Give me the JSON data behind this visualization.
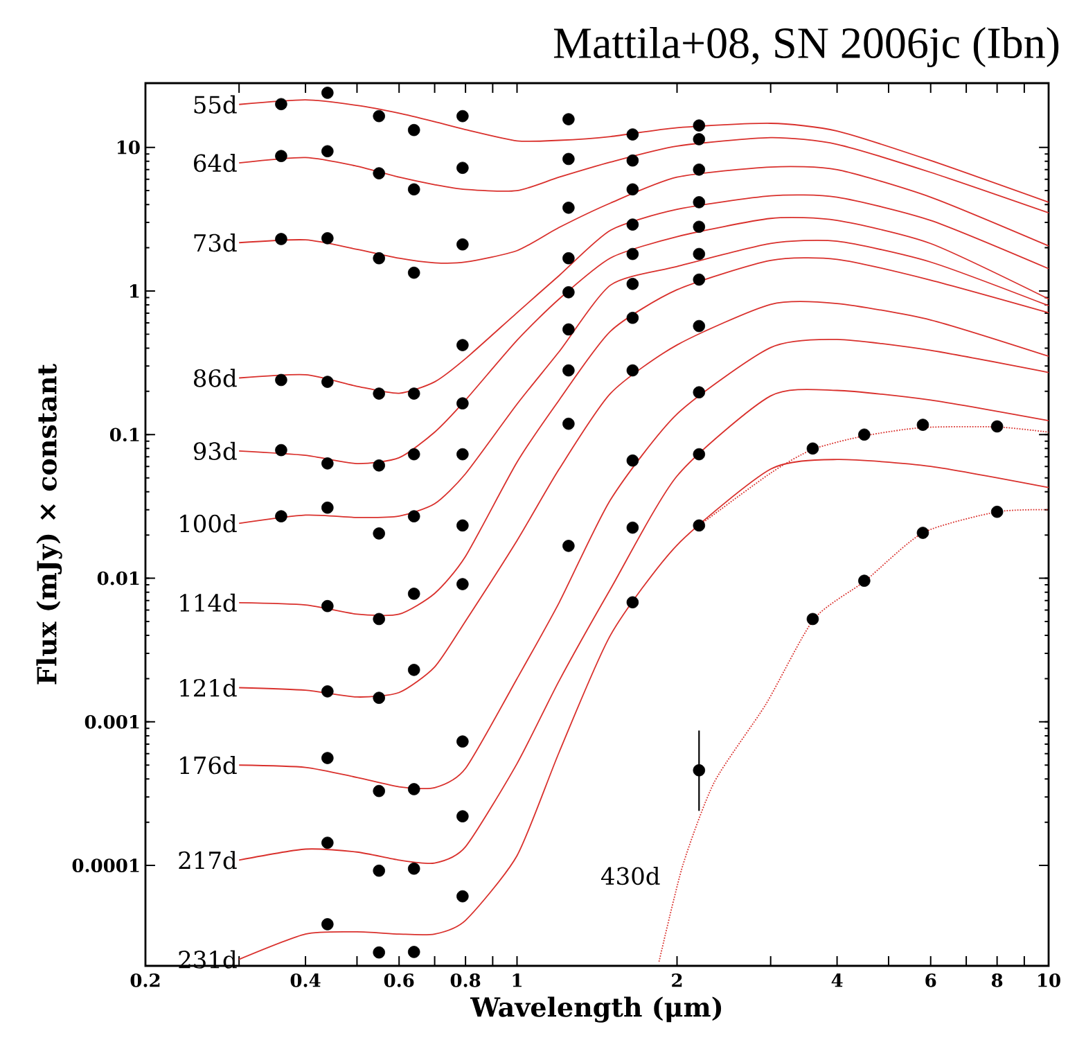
{
  "chart_data": {
    "type": "scatter",
    "title": "Mattila+08, SN 2006jc (Ibn)",
    "xlabel": "Wavelength (μm)",
    "ylabel": "Flux (mJy) × constant",
    "log": "xy",
    "xlim": [
      0.2,
      10
    ],
    "ylim": [
      2e-05,
      28
    ],
    "xticks": [
      0.2,
      {
        "value": 0.3,
        "label": null
      },
      0.4,
      {
        "value": 0.5,
        "label": null
      },
      0.6,
      {
        "value": 0.7,
        "label": null
      },
      0.8,
      {
        "value": 0.9,
        "label": null
      },
      1,
      2,
      {
        "value": 3,
        "label": null
      },
      4,
      {
        "value": 5,
        "label": null
      },
      6,
      {
        "value": 7,
        "label": null
      },
      8,
      {
        "value": 9,
        "label": null
      },
      10
    ],
    "yticks": [
      0.0001,
      0.001,
      0.01,
      0.1,
      1,
      10
    ],
    "x": [
      0.36,
      0.44,
      0.55,
      0.64,
      0.79,
      1.25,
      1.65,
      2.2
    ],
    "series": [
      {
        "type": "line",
        "name": "55d",
        "color": "#d9302c",
        "x": [
          0.3,
          0.4,
          0.5,
          0.6,
          0.7,
          0.8,
          1.0,
          1.2,
          1.5,
          2,
          3,
          4,
          6,
          10
        ],
        "values": [
          19.9,
          21.4,
          19.6,
          17.3,
          15.1,
          13.3,
          11.1,
          11.2,
          11.9,
          13.7,
          14.7,
          13.0,
          8.1,
          4.15
        ]
      },
      {
        "type": "line",
        "name": "64d",
        "color": "#d9302c",
        "x": [
          0.3,
          0.4,
          0.5,
          0.6,
          0.7,
          0.8,
          1.0,
          1.2,
          1.5,
          2,
          3,
          4,
          6,
          10
        ],
        "values": [
          7.8,
          8.5,
          7.4,
          6.2,
          5.5,
          5.1,
          5.0,
          6.2,
          7.9,
          10.2,
          11.7,
          10.5,
          6.7,
          3.5
        ]
      },
      {
        "type": "line",
        "name": "73d",
        "color": "#d9302c",
        "x": [
          0.3,
          0.4,
          0.5,
          0.6,
          0.7,
          0.8,
          1.0,
          1.2,
          1.5,
          2,
          3,
          4,
          6,
          10
        ],
        "values": [
          2.17,
          2.27,
          1.95,
          1.69,
          1.57,
          1.59,
          1.91,
          2.77,
          4.1,
          6.2,
          7.3,
          7.0,
          4.5,
          2.06
        ]
      },
      {
        "type": "line",
        "name": "86d",
        "color": "#d9302c",
        "x": [
          0.3,
          0.4,
          0.5,
          0.6,
          0.7,
          0.8,
          1.0,
          1.2,
          1.5,
          2,
          3,
          4,
          6,
          10
        ],
        "values": [
          0.248,
          0.261,
          0.217,
          0.194,
          0.233,
          0.338,
          0.706,
          1.28,
          2.65,
          3.7,
          4.6,
          4.5,
          3.1,
          1.43
        ]
      },
      {
        "type": "line",
        "name": "93d",
        "color": "#d9302c",
        "x": [
          0.3,
          0.4,
          0.5,
          0.6,
          0.7,
          0.8,
          1.0,
          1.2,
          1.5,
          2,
          3,
          4,
          6,
          10
        ],
        "values": [
          0.077,
          0.0718,
          0.0628,
          0.069,
          0.104,
          0.174,
          0.454,
          0.88,
          1.7,
          2.39,
          3.2,
          3.1,
          2.14,
          0.88
        ]
      },
      {
        "type": "line",
        "name": "100d",
        "color": "#d9302c",
        "x": [
          0.3,
          0.4,
          0.5,
          0.6,
          0.7,
          0.8,
          1.0,
          1.2,
          1.5,
          2,
          3,
          4,
          6,
          10
        ],
        "values": [
          0.0241,
          0.0275,
          0.0265,
          0.0271,
          0.033,
          0.0534,
          0.163,
          0.378,
          1.1,
          1.48,
          2.14,
          2.22,
          1.59,
          0.79
        ]
      },
      {
        "type": "line",
        "name": "114d",
        "color": "#d9302c",
        "x": [
          0.3,
          0.4,
          0.5,
          0.6,
          0.7,
          0.8,
          1.0,
          1.2,
          1.5,
          2,
          3,
          4,
          6,
          10
        ],
        "values": [
          0.00676,
          0.00652,
          0.00562,
          0.00562,
          0.00784,
          0.0142,
          0.0643,
          0.174,
          0.526,
          1.02,
          1.63,
          1.66,
          1.19,
          0.706
        ]
      },
      {
        "type": "line",
        "name": "121d",
        "color": "#d9302c",
        "x": [
          0.3,
          0.4,
          0.5,
          0.6,
          0.7,
          0.8,
          1.0,
          1.2,
          1.5,
          2,
          3,
          4,
          6,
          10
        ],
        "values": [
          0.00173,
          0.00166,
          0.00149,
          0.0016,
          0.00241,
          0.00503,
          0.0183,
          0.0575,
          0.194,
          0.421,
          0.807,
          0.818,
          0.628,
          0.351
        ]
      },
      {
        "type": "line",
        "name": "176d",
        "color": "#d9302c",
        "x": [
          0.3,
          0.4,
          0.5,
          0.6,
          0.7,
          0.8,
          1.0,
          1.2,
          1.5,
          2,
          3,
          4,
          6,
          10
        ],
        "values": [
          0.0005,
          0.000482,
          0.00041,
          0.000353,
          0.000348,
          0.000474,
          0.002,
          0.00676,
          0.0353,
          0.139,
          0.404,
          0.46,
          0.386,
          0.271
        ]
      },
      {
        "type": "line",
        "name": "217d",
        "color": "#d9302c",
        "x": [
          0.3,
          0.4,
          0.5,
          0.6,
          0.7,
          0.8,
          1.0,
          1.2,
          1.5,
          2,
          3,
          4,
          6,
          10
        ],
        "values": [
          0.000109,
          0.00013,
          0.000124,
          0.000109,
          0.000104,
          0.000135,
          0.000512,
          0.00193,
          0.00844,
          0.0515,
          0.186,
          0.203,
          0.174,
          0.125
        ]
      },
      {
        "type": "line",
        "name": "231d",
        "color": "#d9302c",
        "x": [
          0.3,
          0.4,
          0.5,
          0.6,
          0.7,
          0.8,
          1.0,
          1.2,
          1.5,
          2,
          3,
          4,
          6,
          10
        ],
        "values": [
          2.22e-05,
          3.33e-05,
          3.45e-05,
          3.33e-05,
          3.33e-05,
          4.15e-05,
          0.000117,
          0.000614,
          0.00403,
          0.017,
          0.0575,
          0.0671,
          0.0601,
          0.0428
        ]
      },
      {
        "type": "line",
        "color": "#d9302c",
        "line_style": "dotted",
        "x": [
          2.2,
          3,
          3.6,
          4.5,
          5.8,
          8,
          10
        ],
        "values": [
          0.0233,
          0.054,
          0.079,
          0.098,
          0.112,
          0.113,
          0.104
        ]
      },
      {
        "type": "line",
        "color": "#d9302c",
        "line_style": "dotted",
        "x": [
          1.85,
          2.05,
          2.35,
          2.94,
          3.62,
          4.52,
          5.8,
          8,
          10
        ],
        "values": [
          2.14e-05,
          0.0001,
          0.00038,
          0.00133,
          0.0052,
          0.0096,
          0.0207,
          0.029,
          0.03
        ]
      },
      {
        "color": "#000000",
        "values": [
          20,
          24,
          16.5,
          13.2,
          16.5,
          15.7,
          12.3,
          14.2
        ]
      },
      {
        "color": "#000000",
        "values": [
          8.7,
          9.4,
          6.6,
          5.1,
          7.2,
          8.3,
          8.1,
          11.4
        ]
      },
      {
        "color": "#000000",
        "values": [
          2.3,
          2.33,
          1.69,
          1.34,
          2.11,
          3.8,
          5.1,
          7.0
        ]
      },
      {
        "color": "#000000",
        "values": [
          0.24,
          0.233,
          0.193,
          0.193,
          0.42,
          1.69,
          2.9,
          4.15
        ]
      },
      {
        "color": "#000000",
        "values": [
          0.078,
          0.063,
          0.061,
          0.073,
          0.165,
          0.98,
          1.81,
          2.8
        ]
      },
      {
        "color": "#000000",
        "values": [
          0.027,
          0.031,
          0.0205,
          0.027,
          0.073,
          0.54,
          1.12,
          1.81
        ]
      },
      {
        "color": "#000000",
        "values": [
          null,
          0.0064,
          0.0052,
          0.0078,
          0.0233,
          0.28,
          0.65,
          1.2
        ]
      },
      {
        "color": "#000000",
        "values": [
          null,
          0.00163,
          0.00147,
          0.0023,
          0.0091,
          0.119,
          0.28,
          0.57
        ]
      },
      {
        "color": "#000000",
        "values": [
          null,
          0.00056,
          0.00033,
          0.00034,
          0.00073,
          0.0168,
          0.066,
          0.197
        ]
      },
      {
        "color": "#000000",
        "values": [
          null,
          0.000144,
          9.2e-05,
          9.5e-05,
          0.00022,
          null,
          0.0225,
          0.073
        ]
      },
      {
        "color": "#000000",
        "values": [
          null,
          3.9e-05,
          2.48e-05,
          2.5e-05,
          6.1e-05,
          null,
          0.0068,
          0.0233
        ]
      },
      {
        "color": "#000000",
        "x": [
          3.6,
          4.5,
          5.8,
          8.0
        ],
        "values": [
          0.08,
          0.1,
          0.117,
          0.114
        ]
      },
      {
        "color": "#000000",
        "x": [
          3.6,
          4.5,
          5.8,
          8.0
        ],
        "values": [
          0.0052,
          0.0096,
          0.0207,
          0.029
        ]
      },
      {
        "color": "#000000",
        "x": [
          2.2
        ],
        "values": [
          0.00046
        ],
        "errors": [
          [
            0.00024,
            0.00087
          ]
        ]
      }
    ],
    "annotations": [
      "430d"
    ]
  }
}
